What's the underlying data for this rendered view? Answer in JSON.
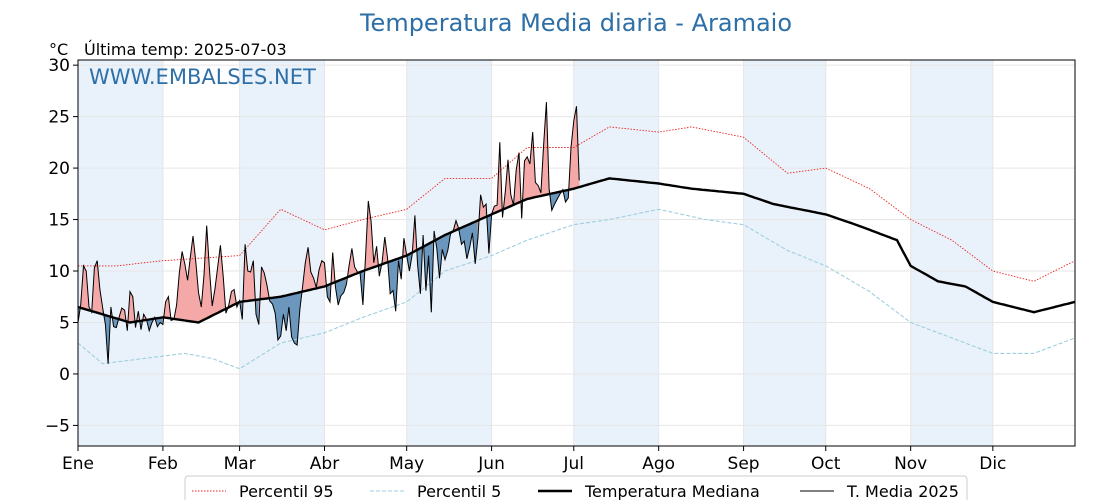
{
  "chart_data": {
    "type": "line",
    "title": "Temperatura Media diaria - Aramaio",
    "unit_label": "°C",
    "last_temp_label": "Última temp: 2025-07-03",
    "watermark": "WWW.EMBALSES.NET",
    "xlim_days": [
      1,
      365
    ],
    "ylim": [
      -7,
      30.5
    ],
    "yticks": [
      -5,
      0,
      5,
      10,
      15,
      20,
      25,
      30
    ],
    "ytick_labels": [
      "−5",
      "0",
      "5",
      "10",
      "15",
      "20",
      "25",
      "30"
    ],
    "months": [
      {
        "label": "Ene",
        "day": 1
      },
      {
        "label": "Feb",
        "day": 32
      },
      {
        "label": "Mar",
        "day": 60
      },
      {
        "label": "Abr",
        "day": 91
      },
      {
        "label": "May",
        "day": 121
      },
      {
        "label": "Jun",
        "day": 152
      },
      {
        "label": "Jul",
        "day": 182
      },
      {
        "label": "Ago",
        "day": 213
      },
      {
        "label": "Sep",
        "day": 244
      },
      {
        "label": "Oct",
        "day": 274
      },
      {
        "label": "Nov",
        "day": 305
      },
      {
        "label": "Dic",
        "day": 335
      }
    ],
    "grid": true,
    "legend_position": "bottom",
    "series": [
      {
        "name": "Percentil 95",
        "color": "#e8231f",
        "style": "dotted",
        "anchors": [
          [
            1,
            10.5
          ],
          [
            15,
            10.5
          ],
          [
            32,
            11
          ],
          [
            60,
            11.5
          ],
          [
            75,
            16
          ],
          [
            91,
            14
          ],
          [
            105,
            15
          ],
          [
            121,
            16
          ],
          [
            135,
            19
          ],
          [
            152,
            19
          ],
          [
            165,
            22
          ],
          [
            182,
            22
          ],
          [
            195,
            24
          ],
          [
            213,
            23.5
          ],
          [
            225,
            24
          ],
          [
            244,
            23
          ],
          [
            260,
            19.5
          ],
          [
            274,
            20
          ],
          [
            290,
            18
          ],
          [
            305,
            15
          ],
          [
            320,
            13
          ],
          [
            335,
            10
          ],
          [
            350,
            9
          ],
          [
            365,
            11
          ]
        ]
      },
      {
        "name": "Percentil 5",
        "color": "#9ecfe0",
        "style": "dashed",
        "anchors": [
          [
            1,
            3
          ],
          [
            10,
            1
          ],
          [
            25,
            1.5
          ],
          [
            40,
            2
          ],
          [
            50,
            1.5
          ],
          [
            60,
            0.5
          ],
          [
            75,
            3
          ],
          [
            91,
            4
          ],
          [
            105,
            5.5
          ],
          [
            121,
            7
          ],
          [
            135,
            10
          ],
          [
            152,
            11.5
          ],
          [
            165,
            13
          ],
          [
            182,
            14.5
          ],
          [
            195,
            15
          ],
          [
            213,
            16
          ],
          [
            230,
            15
          ],
          [
            244,
            14.5
          ],
          [
            260,
            12
          ],
          [
            274,
            10.5
          ],
          [
            290,
            8
          ],
          [
            305,
            5
          ],
          [
            320,
            3.5
          ],
          [
            335,
            2
          ],
          [
            350,
            2
          ],
          [
            365,
            3.5
          ]
        ]
      },
      {
        "name": "Temperatura Mediana",
        "color": "#000000",
        "style": "thick",
        "anchors": [
          [
            1,
            6.5
          ],
          [
            20,
            5
          ],
          [
            32,
            5.5
          ],
          [
            45,
            5
          ],
          [
            60,
            7
          ],
          [
            75,
            7.5
          ],
          [
            91,
            8.5
          ],
          [
            105,
            10
          ],
          [
            121,
            11.5
          ],
          [
            135,
            13.5
          ],
          [
            152,
            15.5
          ],
          [
            165,
            17
          ],
          [
            182,
            18
          ],
          [
            195,
            19
          ],
          [
            213,
            18.5
          ],
          [
            225,
            18
          ],
          [
            244,
            17.5
          ],
          [
            255,
            16.5
          ],
          [
            274,
            15.5
          ],
          [
            285,
            14.5
          ],
          [
            300,
            13
          ],
          [
            305,
            10.5
          ],
          [
            315,
            9
          ],
          [
            325,
            8.5
          ],
          [
            335,
            7
          ],
          [
            350,
            6
          ],
          [
            365,
            7
          ]
        ]
      },
      {
        "name": "T. Media 2025",
        "color": "#000000",
        "style": "thin",
        "values": [
          5.0,
          6.7,
          10.5,
          10.0,
          6.5,
          6.0,
          10.3,
          11.0,
          8.2,
          6.4,
          4.8,
          1.0,
          6.5,
          4.6,
          4.5,
          5.5,
          6.4,
          6.2,
          4.2,
          8.0,
          7.5,
          4.5,
          6.1,
          4.3,
          5.8,
          5.3,
          4.2,
          5.0,
          5.5,
          4.6,
          5.0,
          4.8,
          7.0,
          7.5,
          5.2,
          5.3,
          6.7,
          9.8,
          11.9,
          10.7,
          9.1,
          11.3,
          13.4,
          10.9,
          7.9,
          6.5,
          9.6,
          14.4,
          10.1,
          6.6,
          8.3,
          10.4,
          12.5,
          9.5,
          5.9,
          6.6,
          8.0,
          8.2,
          6.5,
          7.1,
          5.3,
          12.6,
          10.0,
          9.9,
          11.0,
          5.8,
          4.8,
          10.4,
          9.8,
          8.6,
          7.1,
          6.8,
          5.9,
          3.3,
          3.7,
          5.8,
          4.2,
          6.5,
          3.6,
          3.0,
          2.8,
          6.3,
          8.5,
          10.8,
          12.3,
          9.9,
          9.3,
          8.4,
          10.1,
          11.0,
          10.8,
          7.5,
          7.0,
          11.8,
          8.4,
          6.7,
          7.6,
          7.9,
          8.7,
          10.6,
          12.2,
          10.4,
          9.9,
          9.8,
          6.7,
          11.5,
          16.8,
          14.8,
          10.8,
          12.4,
          9.5,
          10.8,
          13.3,
          11.3,
          7.8,
          8.1,
          6.1,
          11.0,
          9.2,
          13.2,
          11.5,
          10.0,
          11.6,
          15.4,
          10.6,
          7.8,
          13.5,
          8.1,
          11.5,
          6.0,
          13.9,
          12.2,
          9.3,
          12.1,
          11.1,
          12.0,
          13.6,
          13.9,
          14.9,
          14.1,
          12.6,
          12.9,
          11.2,
          12.3,
          13.7,
          10.7,
          13.2,
          17.4,
          16.2,
          16.5,
          11.7,
          15.5,
          16.3,
          16.4,
          22.5,
          15.2,
          17.7,
          20.8,
          17.4,
          16.4,
          19.8,
          21.5,
          15.1,
          20.7,
          21.1,
          20.4,
          23.5,
          18.6,
          18.3,
          17.6,
          22.2,
          26.4,
          18.0,
          15.9,
          16.5,
          17.0,
          17.5,
          17.9,
          16.7,
          17.1,
          22.0,
          24.6,
          26.0,
          18.8
        ]
      }
    ],
    "legend": [
      {
        "label": "Percentil 95",
        "style": "dotted",
        "color": "#e8231f"
      },
      {
        "label": "Percentil 5",
        "style": "dashed",
        "color": "#9ecfe0"
      },
      {
        "label": "Temperatura Mediana",
        "style": "thick",
        "color": "#000000"
      },
      {
        "label": "T. Media 2025",
        "style": "thin",
        "color": "#000000"
      }
    ],
    "fill_colors": {
      "above": "#f4a9a8",
      "below": "#6b97bd",
      "band": "#e9f2fa"
    }
  }
}
